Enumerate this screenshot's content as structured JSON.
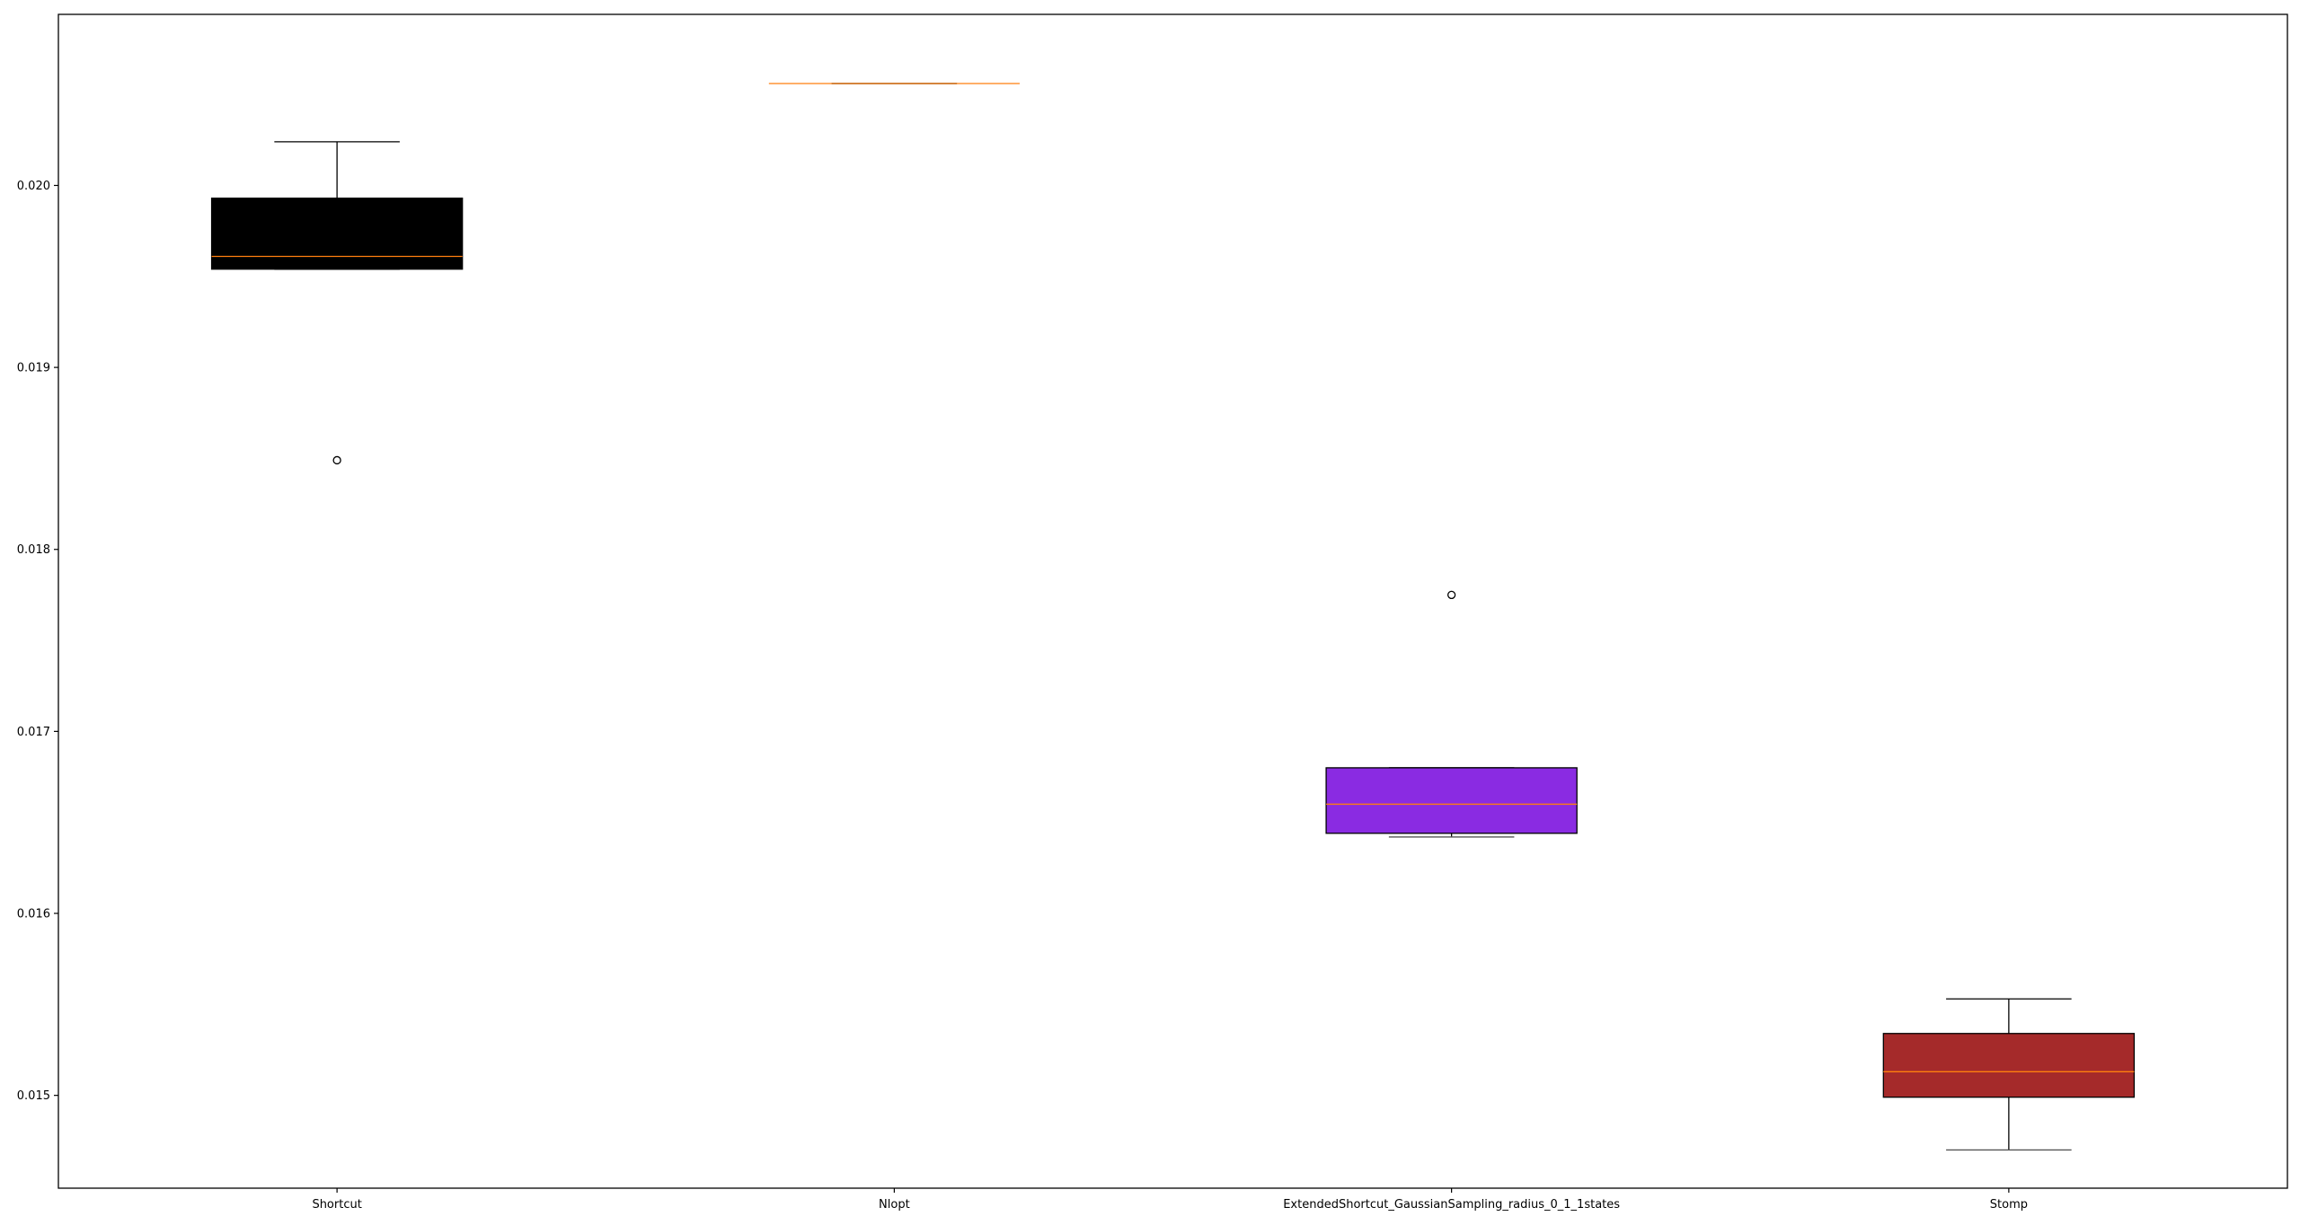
{
  "chart_data": {
    "type": "box",
    "title": "",
    "xlabel": "",
    "ylabel": "",
    "ylim": [
      0.01449,
      0.02094
    ],
    "yticks": [
      {
        "value": 0.015,
        "label": "0.015"
      },
      {
        "value": 0.016,
        "label": "0.016"
      },
      {
        "value": 0.017,
        "label": "0.017"
      },
      {
        "value": 0.018,
        "label": "0.018"
      },
      {
        "value": 0.019,
        "label": "0.019"
      },
      {
        "value": 0.02,
        "label": "0.020"
      }
    ],
    "grid": false,
    "legend": "none",
    "median_color": "#ff7f0e",
    "categories": [
      "Shortcut",
      "Nlopt",
      "ExtendedShortcut_GaussianSampling_radius_0_1_1states",
      "Stomp"
    ],
    "boxes": [
      {
        "category": "Shortcut",
        "color": "#000000",
        "whisker_low": 0.01954,
        "q1": 0.01954,
        "median": 0.01961,
        "q3": 0.01993,
        "whisker_high": 0.02024,
        "outliers": [
          0.01849
        ]
      },
      {
        "category": "Nlopt",
        "color": "#000000",
        "whisker_low": 0.02056,
        "q1": 0.02056,
        "median": 0.02056,
        "q3": 0.02056,
        "whisker_high": 0.02056,
        "outliers": []
      },
      {
        "category": "ExtendedShortcut_GaussianSampling_radius_0_1_1states",
        "color": "#8a2be2",
        "whisker_low": 0.01642,
        "q1": 0.01644,
        "median": 0.0166,
        "q3": 0.0168,
        "whisker_high": 0.0168,
        "outliers": [
          0.01775
        ]
      },
      {
        "category": "Stomp",
        "color": "#a52a2a",
        "whisker_low": 0.0147,
        "q1": 0.01499,
        "median": 0.01513,
        "q3": 0.01534,
        "whisker_high": 0.01553,
        "outliers": []
      }
    ]
  }
}
